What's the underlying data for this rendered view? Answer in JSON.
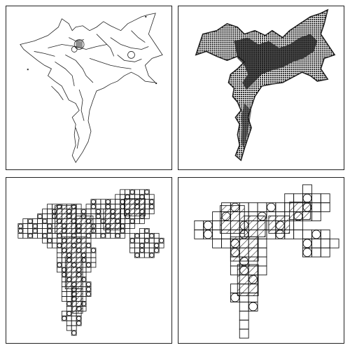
{
  "figure": {
    "panels": [
      {
        "id": "p1",
        "kind": "outline-contour",
        "stroke": "#222222"
      },
      {
        "id": "p2",
        "kind": "filled-pixel-silhouette",
        "fill": "#1a1a1a"
      },
      {
        "id": "p3",
        "kind": "fine-quadtree-cells",
        "stroke": "#111111"
      },
      {
        "id": "p4",
        "kind": "coarse-quadtree-cells",
        "stroke": "#111111"
      }
    ]
  }
}
